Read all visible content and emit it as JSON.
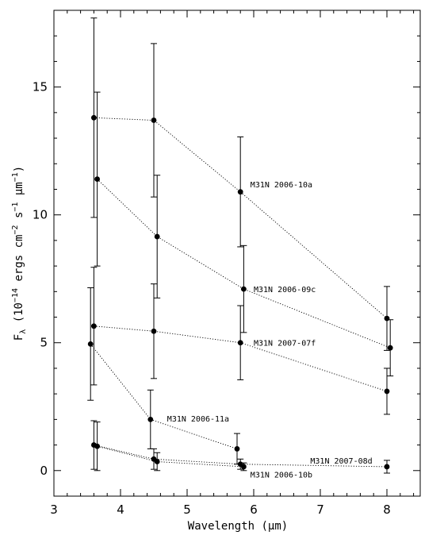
{
  "chart_data": {
    "type": "scatter",
    "xlabel": "Wavelength (μm)",
    "ylabel": "F",
    "ylabel_subscript": "λ",
    "ylabel_rest_a": " (10",
    "ylabel_exp1": "−14",
    "ylabel_rest_b": " ergs cm",
    "ylabel_exp2": "−2",
    "ylabel_rest_c": " s",
    "ylabel_exp3": "−1",
    "ylabel_rest_d": " μm",
    "ylabel_exp4": "−1",
    "ylabel_rest_e": ")",
    "xlim": [
      3,
      8.5
    ],
    "ylim": [
      -1,
      18
    ],
    "xticks": [
      3,
      4,
      5,
      6,
      7,
      8
    ],
    "yticks": [
      0,
      5,
      10,
      15
    ],
    "series": [
      {
        "name": "M31N 2006-10a",
        "points": [
          {
            "x": 3.6,
            "y": 13.8,
            "err": 3.9
          },
          {
            "x": 4.5,
            "y": 13.7,
            "err": 3.0
          },
          {
            "x": 5.8,
            "y": 10.9,
            "err": 2.15
          },
          {
            "x": 8.0,
            "y": 5.95,
            "err": 1.25
          }
        ]
      },
      {
        "name": "M31N 2006-09c",
        "points": [
          {
            "x": 3.65,
            "y": 11.4,
            "err": 3.4
          },
          {
            "x": 4.55,
            "y": 9.15,
            "err": 2.4
          },
          {
            "x": 5.85,
            "y": 7.1,
            "err": 1.7
          },
          {
            "x": 8.05,
            "y": 4.8,
            "err": 1.1
          }
        ]
      },
      {
        "name": "M31N 2007-07f",
        "points": [
          {
            "x": 3.6,
            "y": 5.65,
            "err": 2.3
          },
          {
            "x": 4.5,
            "y": 5.45,
            "err": 1.85
          },
          {
            "x": 5.8,
            "y": 5.0,
            "err": 1.45
          },
          {
            "x": 8.0,
            "y": 3.1,
            "err": 0.9
          }
        ]
      },
      {
        "name": "M31N 2006-11a",
        "points": [
          {
            "x": 3.55,
            "y": 4.95,
            "err": 2.2
          },
          {
            "x": 4.45,
            "y": 2.0,
            "err": 1.15
          },
          {
            "x": 5.75,
            "y": 0.85,
            "err": 0.6
          }
        ]
      },
      {
        "name": "M31N 2007-08d",
        "points": [
          {
            "x": 3.6,
            "y": 1.0,
            "err": 0.95
          },
          {
            "x": 4.5,
            "y": 0.45,
            "err": 0.4
          },
          {
            "x": 5.8,
            "y": 0.25,
            "err": 0.2
          },
          {
            "x": 8.0,
            "y": 0.15,
            "err": 0.25
          }
        ]
      },
      {
        "name": "M31N 2006-10b",
        "points": [
          {
            "x": 3.65,
            "y": 0.95,
            "err": 0.95
          },
          {
            "x": 4.55,
            "y": 0.35,
            "err": 0.35
          },
          {
            "x": 5.85,
            "y": 0.15,
            "err": 0.15
          }
        ]
      }
    ],
    "annotations": [
      {
        "text": "M31N 2006-10a",
        "x": 5.95,
        "y": 11.2
      },
      {
        "text": "M31N 2006-09c",
        "x": 6.0,
        "y": 7.1
      },
      {
        "text": "M31N 2007-07f",
        "x": 6.0,
        "y": 5.0
      },
      {
        "text": "M31N 2006-11a",
        "x": 4.7,
        "y": 2.05
      },
      {
        "text": "M31N 2007-08d",
        "x": 6.85,
        "y": 0.4
      },
      {
        "text": "M31N 2006-10b",
        "x": 5.95,
        "y": -0.15
      }
    ]
  }
}
